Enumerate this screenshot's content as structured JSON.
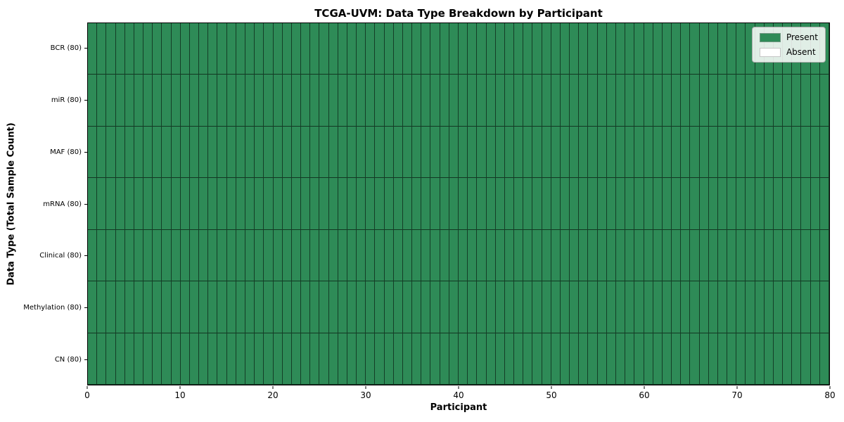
{
  "chart_data": {
    "type": "heatmap",
    "title": "TCGA-UVM: Data Type Breakdown by Participant",
    "xlabel": "Participant",
    "ylabel": "Data Type (Total Sample Count)",
    "n_participants": 80,
    "x_ticks": [
      0,
      10,
      20,
      30,
      40,
      50,
      60,
      70,
      80
    ],
    "xlim": [
      0,
      80
    ],
    "rows": [
      {
        "label": "BCR (80)",
        "present_count": 80
      },
      {
        "label": "miR (80)",
        "present_count": 80
      },
      {
        "label": "MAF (80)",
        "present_count": 80
      },
      {
        "label": "mRNA (80)",
        "present_count": 80
      },
      {
        "label": "Clinical (80)",
        "present_count": 80
      },
      {
        "label": "Methylation (80)",
        "present_count": 80
      },
      {
        "label": "CN (80)",
        "present_count": 80
      }
    ],
    "legend": {
      "position": "upper right",
      "items": [
        {
          "label": "Present",
          "color": "#2e8b57"
        },
        {
          "label": "Absent",
          "color": "#ffffff"
        }
      ]
    },
    "colors": {
      "present": "#2e8b57",
      "absent": "#ffffff",
      "spine": "#000000"
    },
    "grid": true
  }
}
